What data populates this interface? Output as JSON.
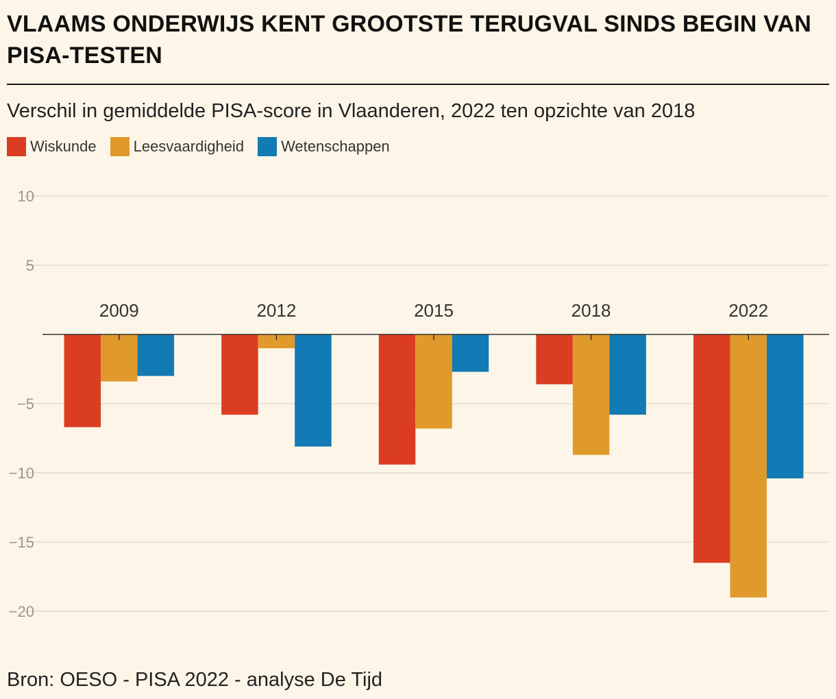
{
  "header": {
    "title": "VLAAMS ONDERWIJS KENT GROOTSTE TERUGVAL SINDS BEGIN VAN PISA-TESTEN",
    "subtitle": "Verschil in gemiddelde PISA-score in Vlaanderen, 2022 ten opzichte van 2018"
  },
  "footer": {
    "source": "Bron: OESO - PISA 2022 - analyse De Tijd"
  },
  "colors": {
    "background": "#fdf6e8",
    "grid": "#e3dccc",
    "axis": "#333333",
    "tick_label": "#9a968e"
  },
  "chart_data": {
    "type": "bar",
    "title": "VLAAMS ONDERWIJS KENT GROOTSTE TERUGVAL SINDS BEGIN VAN PISA-TESTEN",
    "subtitle": "Verschil in gemiddelde PISA-score in Vlaanderen, 2022 ten opzichte van 2018",
    "categories": [
      "2009",
      "2012",
      "2015",
      "2018",
      "2022"
    ],
    "series": [
      {
        "name": "Wiskunde",
        "color": "#da3d22",
        "values": [
          -6.7,
          -5.8,
          -9.4,
          -3.6,
          -16.5
        ]
      },
      {
        "name": "Leesvaardigheid",
        "color": "#e09a2b",
        "values": [
          -3.4,
          -1.0,
          -6.8,
          -8.7,
          -19.0
        ]
      },
      {
        "name": "Wetenschappen",
        "color": "#127ab4",
        "values": [
          -3.0,
          -8.1,
          -2.7,
          -5.8,
          -10.4
        ]
      }
    ],
    "ylim": [
      -20,
      10
    ],
    "yticks": [
      10,
      5,
      -5,
      -10,
      -15,
      -20
    ],
    "ytick_labels": [
      "10",
      "5",
      "−5",
      "−10",
      "−15",
      "−20"
    ],
    "xlabel": "",
    "ylabel": "",
    "grid": true,
    "legend": "top-left",
    "category_labels_position": "above zero line"
  }
}
